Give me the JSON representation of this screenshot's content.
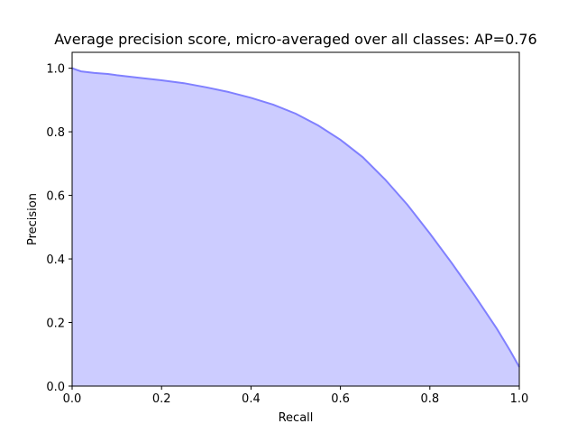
{
  "chart_data": {
    "type": "area",
    "title": "Average precision score, micro-averaged over all classes: AP=0.76",
    "xlabel": "Recall",
    "ylabel": "Precision",
    "xlim": [
      0.0,
      1.0
    ],
    "ylim": [
      0.0,
      1.05
    ],
    "xticks": [
      "0.0",
      "0.2",
      "0.4",
      "0.6",
      "0.8",
      "1.0"
    ],
    "yticks": [
      "0.0",
      "0.2",
      "0.4",
      "0.6",
      "0.8",
      "1.0"
    ],
    "grid": false,
    "legend": "none",
    "fill_color": "#ccccff",
    "line_color": "#8080ff",
    "series": [
      {
        "x": [
          0.0,
          0.01,
          0.02,
          0.05,
          0.08,
          0.1,
          0.15,
          0.2,
          0.25,
          0.3,
          0.35,
          0.4,
          0.45,
          0.5,
          0.55,
          0.6,
          0.65,
          0.7,
          0.75,
          0.8,
          0.85,
          0.9,
          0.95,
          0.98,
          1.0
        ],
        "y": [
          1.0,
          0.995,
          0.99,
          0.985,
          0.982,
          0.978,
          0.97,
          0.962,
          0.953,
          0.94,
          0.925,
          0.907,
          0.885,
          0.857,
          0.82,
          0.775,
          0.72,
          0.65,
          0.57,
          0.48,
          0.385,
          0.285,
          0.18,
          0.11,
          0.06
        ]
      }
    ]
  }
}
